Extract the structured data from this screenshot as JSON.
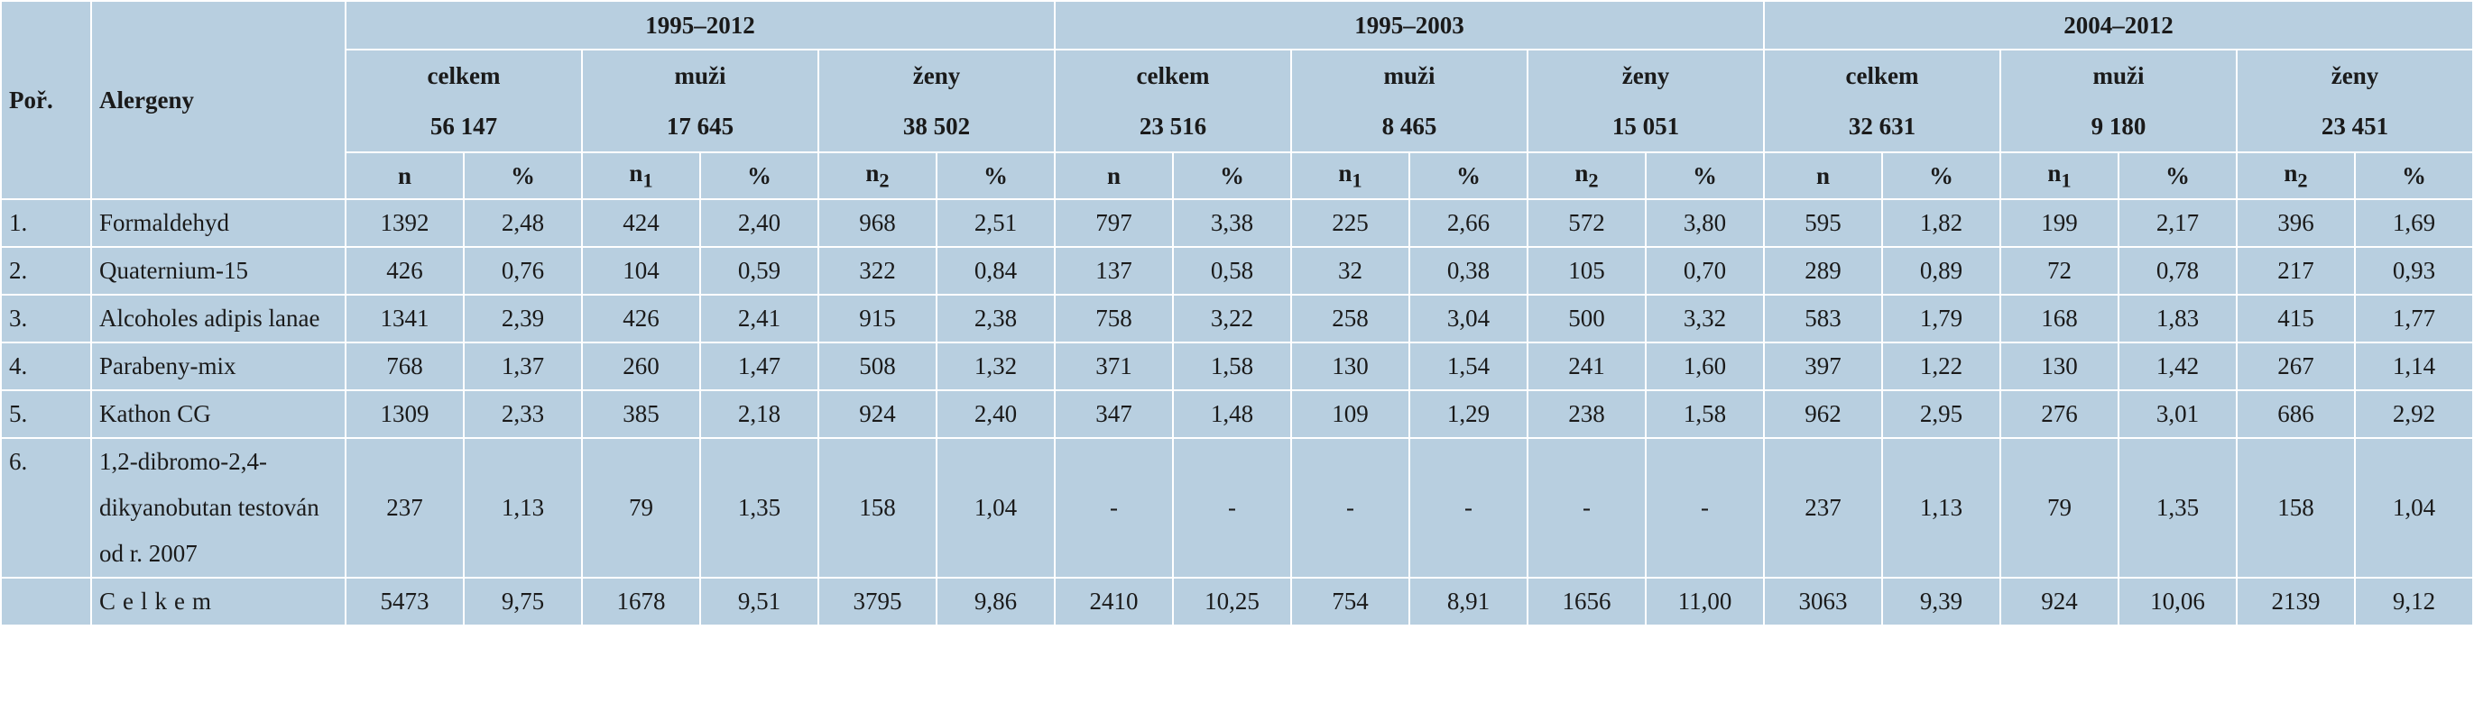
{
  "table": {
    "head": {
      "num": "Poř.",
      "name": "Alergeny"
    },
    "periods": [
      {
        "label": "1995–2012",
        "groups": [
          {
            "label": "celkem",
            "total": "56 147",
            "cols": [
              {
                "text": "n"
              },
              {
                "text": "%"
              }
            ]
          },
          {
            "label": "muži",
            "total": "17 645",
            "cols": [
              {
                "text": "n",
                "sub": "1"
              },
              {
                "text": "%"
              }
            ]
          },
          {
            "label": "ženy",
            "total": "38 502",
            "cols": [
              {
                "text": "n",
                "sub": "2"
              },
              {
                "text": "%"
              }
            ]
          }
        ]
      },
      {
        "label": "1995–2003",
        "groups": [
          {
            "label": "celkem",
            "total": "23 516",
            "cols": [
              {
                "text": "n"
              },
              {
                "text": "%"
              }
            ]
          },
          {
            "label": "muži",
            "total": "8 465",
            "cols": [
              {
                "text": "n",
                "sub": "1"
              },
              {
                "text": "%"
              }
            ]
          },
          {
            "label": "ženy",
            "total": "15 051",
            "cols": [
              {
                "text": "n",
                "sub": "2"
              },
              {
                "text": "%"
              }
            ]
          }
        ]
      },
      {
        "label": "2004–2012",
        "groups": [
          {
            "label": "celkem",
            "total": "32 631",
            "cols": [
              {
                "text": "n"
              },
              {
                "text": "%"
              }
            ]
          },
          {
            "label": "muži",
            "total": "9 180",
            "cols": [
              {
                "text": "n",
                "sub": "1"
              },
              {
                "text": "%"
              }
            ]
          },
          {
            "label": "ženy",
            "total": "23 451",
            "cols": [
              {
                "text": "n",
                "sub": "2"
              },
              {
                "text": "%"
              }
            ]
          }
        ]
      }
    ],
    "rows": [
      {
        "num": "1.",
        "name": "Formaldehyd",
        "cells": [
          "1392",
          "2,48",
          "424",
          "2,40",
          "968",
          "2,51",
          "797",
          "3,38",
          "225",
          "2,66",
          "572",
          "3,80",
          "595",
          "1,82",
          "199",
          "2,17",
          "396",
          "1,69"
        ]
      },
      {
        "num": "2.",
        "name": "Quaternium-15",
        "cells": [
          "426",
          "0,76",
          "104",
          "0,59",
          "322",
          "0,84",
          "137",
          "0,58",
          "32",
          "0,38",
          "105",
          "0,70",
          "289",
          "0,89",
          "72",
          "0,78",
          "217",
          "0,93"
        ]
      },
      {
        "num": "3.",
        "name": "Alcoholes adipis lanae",
        "cells": [
          "1341",
          "2,39",
          "426",
          "2,41",
          "915",
          "2,38",
          "758",
          "3,22",
          "258",
          "3,04",
          "500",
          "3,32",
          "583",
          "1,79",
          "168",
          "1,83",
          "415",
          "1,77"
        ]
      },
      {
        "num": "4.",
        "name": "Parabeny-mix",
        "cells": [
          "768",
          "1,37",
          "260",
          "1,47",
          "508",
          "1,32",
          "371",
          "1,58",
          "130",
          "1,54",
          "241",
          "1,60",
          "397",
          "1,22",
          "130",
          "1,42",
          "267",
          "1,14"
        ]
      },
      {
        "num": "5.",
        "name": "Kathon CG",
        "cells": [
          "1309",
          "2,33",
          "385",
          "2,18",
          "924",
          "2,40",
          "347",
          "1,48",
          "109",
          "1,29",
          "238",
          "1,58",
          "962",
          "2,95",
          "276",
          "3,01",
          "686",
          "2,92"
        ]
      },
      {
        "num": "6.",
        "name": "1,2-dibromo-2,4-dikyanobutan testován od r. 2007",
        "cells": [
          "237",
          "1,13",
          "79",
          "1,35",
          "158",
          "1,04",
          "-",
          "-",
          "-",
          "-",
          "-",
          "-",
          "237",
          "1,13",
          "79",
          "1,35",
          "158",
          "1,04"
        ]
      },
      {
        "name": "Celkem",
        "cells": [
          "5473",
          "9,75",
          "1678",
          "9,51",
          "3795",
          "9,86",
          "2410",
          "10,25",
          "754",
          "8,91",
          "1656",
          "11,00",
          "3063",
          "9,39",
          "924",
          "10,06",
          "2139",
          "9,12"
        ]
      }
    ]
  }
}
